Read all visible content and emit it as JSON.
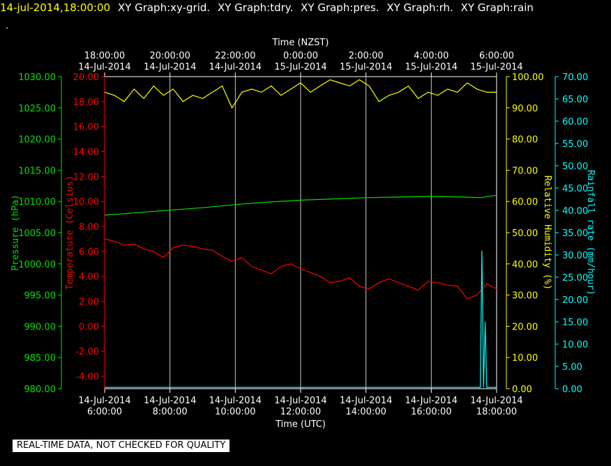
{
  "header": {
    "timestamp": "14-jul-2014,18:00:00",
    "timestamp_color": "#ffff00",
    "graphs": [
      "XY Graph:xy-grid.",
      "XY Graph:tdry.",
      "XY Graph:pres.",
      "XY Graph:rh.",
      "XY Graph:rain"
    ],
    "dot": "."
  },
  "disclaimer": "REAL-TIME DATA, NOT CHECKED FOR QUALITY",
  "chart_data": {
    "type": "line",
    "grid": true,
    "x_axis_top": {
      "label": "Time (NZST)",
      "ticks": [
        [
          "18:00:00",
          "14-Jul-2014"
        ],
        [
          "20:00:00",
          "14-Jul-2014"
        ],
        [
          "22:00:00",
          "14-Jul-2014"
        ],
        [
          "0:00:00",
          "15-Jul-2014"
        ],
        [
          "2:00:00",
          "15-Jul-2014"
        ],
        [
          "4:00:00",
          "15-Jul-2014"
        ],
        [
          "6:00:00",
          "15-Jul-2014"
        ]
      ]
    },
    "x_axis_bottom": {
      "label": "Time (UTC)",
      "range": [
        6,
        18
      ],
      "ticks": [
        [
          "14-Jul-2014",
          "6:00:00"
        ],
        [
          "14-Jul-2014",
          "8:00:00"
        ],
        [
          "14-Jul-2014",
          "10:00:00"
        ],
        [
          "14-Jul-2014",
          "12:00:00"
        ],
        [
          "14-Jul-2014",
          "14:00:00"
        ],
        [
          "14-Jul-2014",
          "16:00:00"
        ],
        [
          "14-Jul-2014",
          "18:00:00"
        ]
      ]
    },
    "y_axes": [
      {
        "id": "pressure",
        "label": "Pressure (hPa)",
        "color": "#00e000",
        "range": [
          980,
          1030
        ],
        "ticks": [
          "1030.00",
          "1025.00",
          "1020.00",
          "1015.00",
          "1010.00",
          "1005.00",
          "1000.00",
          "995.00",
          "990.00",
          "985.00",
          "980.00"
        ]
      },
      {
        "id": "temperature",
        "label": "Temperature (Celsius)",
        "color": "#ff0000",
        "range": [
          -5,
          20
        ],
        "ticks": [
          "20.00",
          "18.00",
          "16.00",
          "14.00",
          "12.00",
          "10.00",
          "8.00",
          "6.00",
          "4.00",
          "2.00",
          "0.00",
          "-2.00",
          "-4.00"
        ]
      },
      {
        "id": "humidity",
        "label": "Relative Humidity (%)",
        "color": "#ffff00",
        "range": [
          0,
          100
        ],
        "ticks": [
          "100.00",
          "90.00",
          "80.00",
          "70.00",
          "60.00",
          "50.00",
          "40.00",
          "30.00",
          "20.00",
          "10.00",
          "0.00"
        ]
      },
      {
        "id": "rain",
        "label": "Rainfall rate (mm/hour)",
        "color": "#00ffff",
        "range": [
          0,
          70
        ],
        "ticks": [
          "70.00",
          "65.00",
          "60.00",
          "55.00",
          "50.00",
          "45.00",
          "40.00",
          "35.00",
          "30.00",
          "25.00",
          "20.00",
          "15.00",
          "10.00",
          "5.00",
          "0.00"
        ]
      }
    ],
    "series": [
      {
        "axis": "humidity",
        "x": [
          6,
          6.3,
          6.6,
          6.9,
          7.2,
          7.5,
          7.8,
          8.1,
          8.4,
          8.7,
          9,
          9.3,
          9.6,
          9.9,
          10.2,
          10.5,
          10.8,
          11.1,
          11.4,
          11.7,
          12,
          12.3,
          12.6,
          12.9,
          13.2,
          13.5,
          13.8,
          14.1,
          14.4,
          14.7,
          15,
          15.3,
          15.6,
          15.9,
          16.2,
          16.5,
          16.8,
          17.1,
          17.4,
          17.7,
          18
        ],
        "y": [
          95,
          94,
          92,
          96,
          93,
          97,
          94,
          96,
          92,
          94,
          93,
          95,
          97,
          90,
          95,
          96,
          95,
          97,
          94,
          96,
          98,
          95,
          97,
          99,
          98,
          97,
          99,
          97,
          92,
          94,
          95,
          97,
          93,
          95,
          94,
          96,
          95,
          98,
          96,
          95,
          95
        ]
      },
      {
        "axis": "pressure",
        "x": [
          6,
          7,
          8,
          9,
          10,
          11,
          12,
          13,
          14,
          15,
          16,
          17,
          17.5,
          18
        ],
        "y": [
          1007.8,
          1008.2,
          1008.6,
          1009.0,
          1009.5,
          1009.9,
          1010.2,
          1010.4,
          1010.6,
          1010.7,
          1010.8,
          1010.7,
          1010.6,
          1011.0
        ]
      },
      {
        "axis": "temperature",
        "x": [
          6,
          6.3,
          6.6,
          6.9,
          7.2,
          7.5,
          7.8,
          8.1,
          8.4,
          8.7,
          9,
          9.3,
          9.6,
          9.9,
          10.2,
          10.5,
          10.8,
          11.1,
          11.4,
          11.7,
          12,
          12.3,
          12.6,
          12.9,
          13.2,
          13.5,
          13.8,
          14.1,
          14.4,
          14.7,
          15,
          15.3,
          15.6,
          15.9,
          16.2,
          16.5,
          16.8,
          17.1,
          17.4,
          17.7,
          18
        ],
        "y": [
          7,
          6.8,
          6.5,
          6.6,
          6.2,
          6.0,
          5.5,
          6.3,
          6.5,
          6.4,
          6.2,
          6.1,
          5.6,
          5.2,
          5.5,
          4.8,
          4.5,
          4.2,
          4.8,
          5.0,
          4.6,
          4.3,
          4.0,
          3.5,
          3.6,
          3.9,
          3.2,
          3.0,
          3.5,
          3.8,
          3.5,
          3.2,
          2.9,
          3.6,
          3.5,
          3.3,
          3.2,
          2.2,
          2.5,
          3.4,
          3.0
        ]
      },
      {
        "axis": "rain",
        "x": [
          6,
          17.5,
          17.55,
          17.6,
          17.65,
          17.7,
          18
        ],
        "y": [
          0.3,
          0.3,
          31,
          0.3,
          15,
          0.3,
          0.3
        ]
      }
    ]
  }
}
